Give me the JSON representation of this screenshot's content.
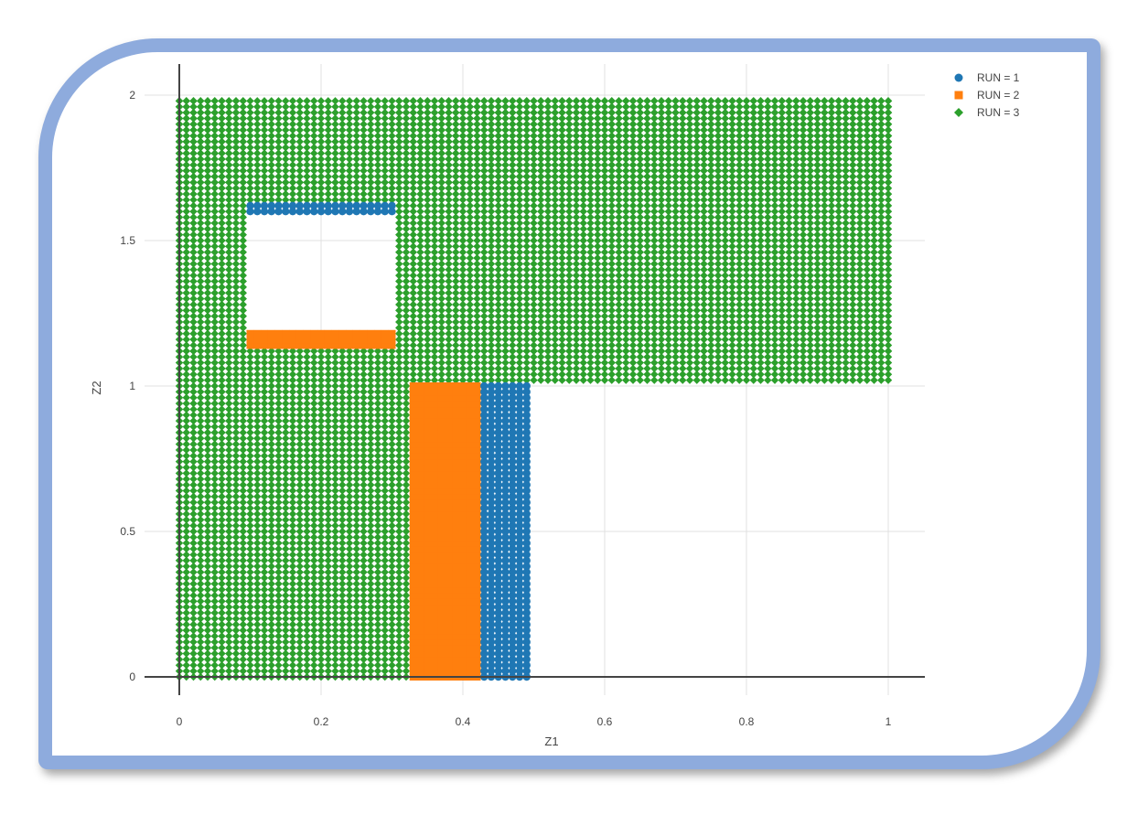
{
  "chart_data": {
    "type": "scatter",
    "title": "",
    "xlabel": "Z1",
    "ylabel": "Z2",
    "xlim": [
      -0.05,
      1.05
    ],
    "ylim": [
      -0.1,
      2.1
    ],
    "xticks": [
      0,
      0.2,
      0.4,
      0.6,
      0.8,
      1
    ],
    "xtick_labels": [
      "0",
      "0.2",
      "0.4",
      "0.6",
      "0.8",
      "1"
    ],
    "yticks": [
      0,
      0.5,
      1,
      1.5,
      2
    ],
    "ytick_labels": [
      "0",
      "0.5",
      "1",
      "1.5",
      "2"
    ],
    "grid": true,
    "legend_position": "top-right",
    "series": [
      {
        "name": "RUN = 1",
        "marker": "circle",
        "color": "#1f77b4",
        "regions": [
          {
            "x": [
              0.43,
              0.49
            ],
            "y": [
              0,
              1.0
            ],
            "step": 0.01
          },
          {
            "x": [
              0.1,
              0.3
            ],
            "y": [
              1.6,
              1.62
            ],
            "step": 0.01
          }
        ]
      },
      {
        "name": "RUN = 2",
        "marker": "square",
        "color": "#ff7f0e",
        "regions": [
          {
            "x": [
              0.33,
              0.42
            ],
            "y": [
              0,
              1.0
            ],
            "step": 0.01
          },
          {
            "x": [
              0.1,
              0.3
            ],
            "y": [
              1.14,
              1.18
            ],
            "step": 0.01
          }
        ]
      },
      {
        "name": "RUN = 3",
        "marker": "diamond",
        "color": "#2ca02c",
        "regions": [
          {
            "x": [
              0,
              0.32
            ],
            "y": [
              0,
              1.0
            ],
            "step": 0.01
          },
          {
            "x": [
              0,
              1.0
            ],
            "y": [
              1.02,
              1.12
            ],
            "step": 0.01
          },
          {
            "x": [
              0,
              0.09
            ],
            "y": [
              1.12,
              1.98
            ],
            "step": 0.01
          },
          {
            "x": [
              0.31,
              1.0
            ],
            "y": [
              1.12,
              1.98
            ],
            "step": 0.01
          },
          {
            "x": [
              0,
              1.0
            ],
            "y": [
              1.7,
              1.98
            ],
            "step": 0.01
          },
          {
            "x": [
              0.1,
              0.3
            ],
            "y": [
              1.64,
              1.7
            ],
            "step": 0.01
          }
        ]
      }
    ]
  }
}
